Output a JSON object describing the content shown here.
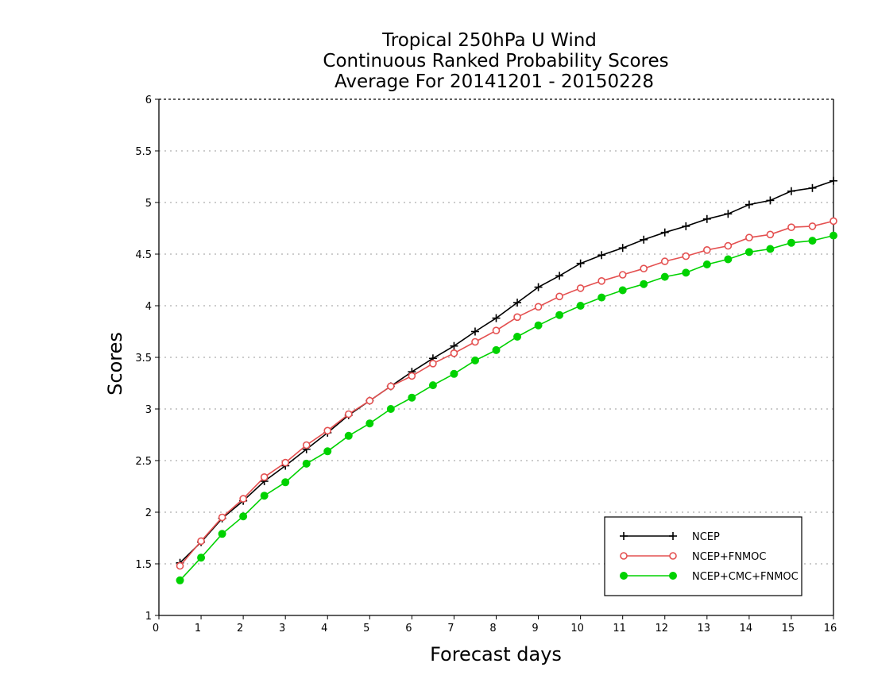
{
  "chart_data": {
    "type": "line",
    "title": [
      "Tropical 250hPa U Wind",
      "Continuous Ranked Probability Scores",
      "Average For 20141201 - 20150228"
    ],
    "xlabel": "Forecast days",
    "ylabel": "Scores",
    "xlim": [
      0,
      16
    ],
    "ylim": [
      1,
      6
    ],
    "xticks": [
      0,
      1,
      2,
      3,
      4,
      5,
      6,
      7,
      8,
      9,
      10,
      11,
      12,
      13,
      14,
      15,
      16
    ],
    "yticks": [
      1,
      1.5,
      2,
      2.5,
      3,
      3.5,
      4,
      4.5,
      5,
      5.5,
      6
    ],
    "grid": true,
    "legend_position": "bottom-right",
    "x": [
      0.5,
      1,
      1.5,
      2,
      2.5,
      3,
      3.5,
      4,
      4.5,
      5,
      5.5,
      6,
      6.5,
      7,
      7.5,
      8,
      8.5,
      9,
      9.5,
      10,
      10.5,
      11,
      11.5,
      12,
      12.5,
      13,
      13.5,
      14,
      14.5,
      15,
      15.5,
      16
    ],
    "series": [
      {
        "name": "NCEP",
        "color": "#000000",
        "marker": "plus",
        "values": [
          1.51,
          1.71,
          1.94,
          2.11,
          2.3,
          2.45,
          2.61,
          2.77,
          2.94,
          3.08,
          3.22,
          3.36,
          3.49,
          3.61,
          3.75,
          3.88,
          4.03,
          4.18,
          4.29,
          4.41,
          4.49,
          4.56,
          4.64,
          4.71,
          4.77,
          4.84,
          4.89,
          4.98,
          5.02,
          5.11,
          5.14,
          5.21
        ]
      },
      {
        "name": "NCEP+FNMOC",
        "color": "#e45050",
        "marker": "open-circle",
        "values": [
          1.48,
          1.72,
          1.95,
          2.13,
          2.34,
          2.48,
          2.65,
          2.79,
          2.95,
          3.08,
          3.22,
          3.32,
          3.44,
          3.54,
          3.65,
          3.76,
          3.89,
          3.99,
          4.09,
          4.17,
          4.24,
          4.3,
          4.36,
          4.43,
          4.48,
          4.54,
          4.58,
          4.66,
          4.69,
          4.76,
          4.77,
          4.82
        ]
      },
      {
        "name": "NCEP+CMC+FNMOC",
        "color": "#00d200",
        "marker": "filled-circle",
        "values": [
          1.34,
          1.56,
          1.79,
          1.96,
          2.16,
          2.29,
          2.47,
          2.59,
          2.74,
          2.86,
          3.0,
          3.11,
          3.23,
          3.34,
          3.47,
          3.57,
          3.7,
          3.81,
          3.91,
          4.0,
          4.08,
          4.15,
          4.21,
          4.28,
          4.32,
          4.4,
          4.45,
          4.52,
          4.55,
          4.61,
          4.63,
          4.68
        ]
      }
    ]
  }
}
